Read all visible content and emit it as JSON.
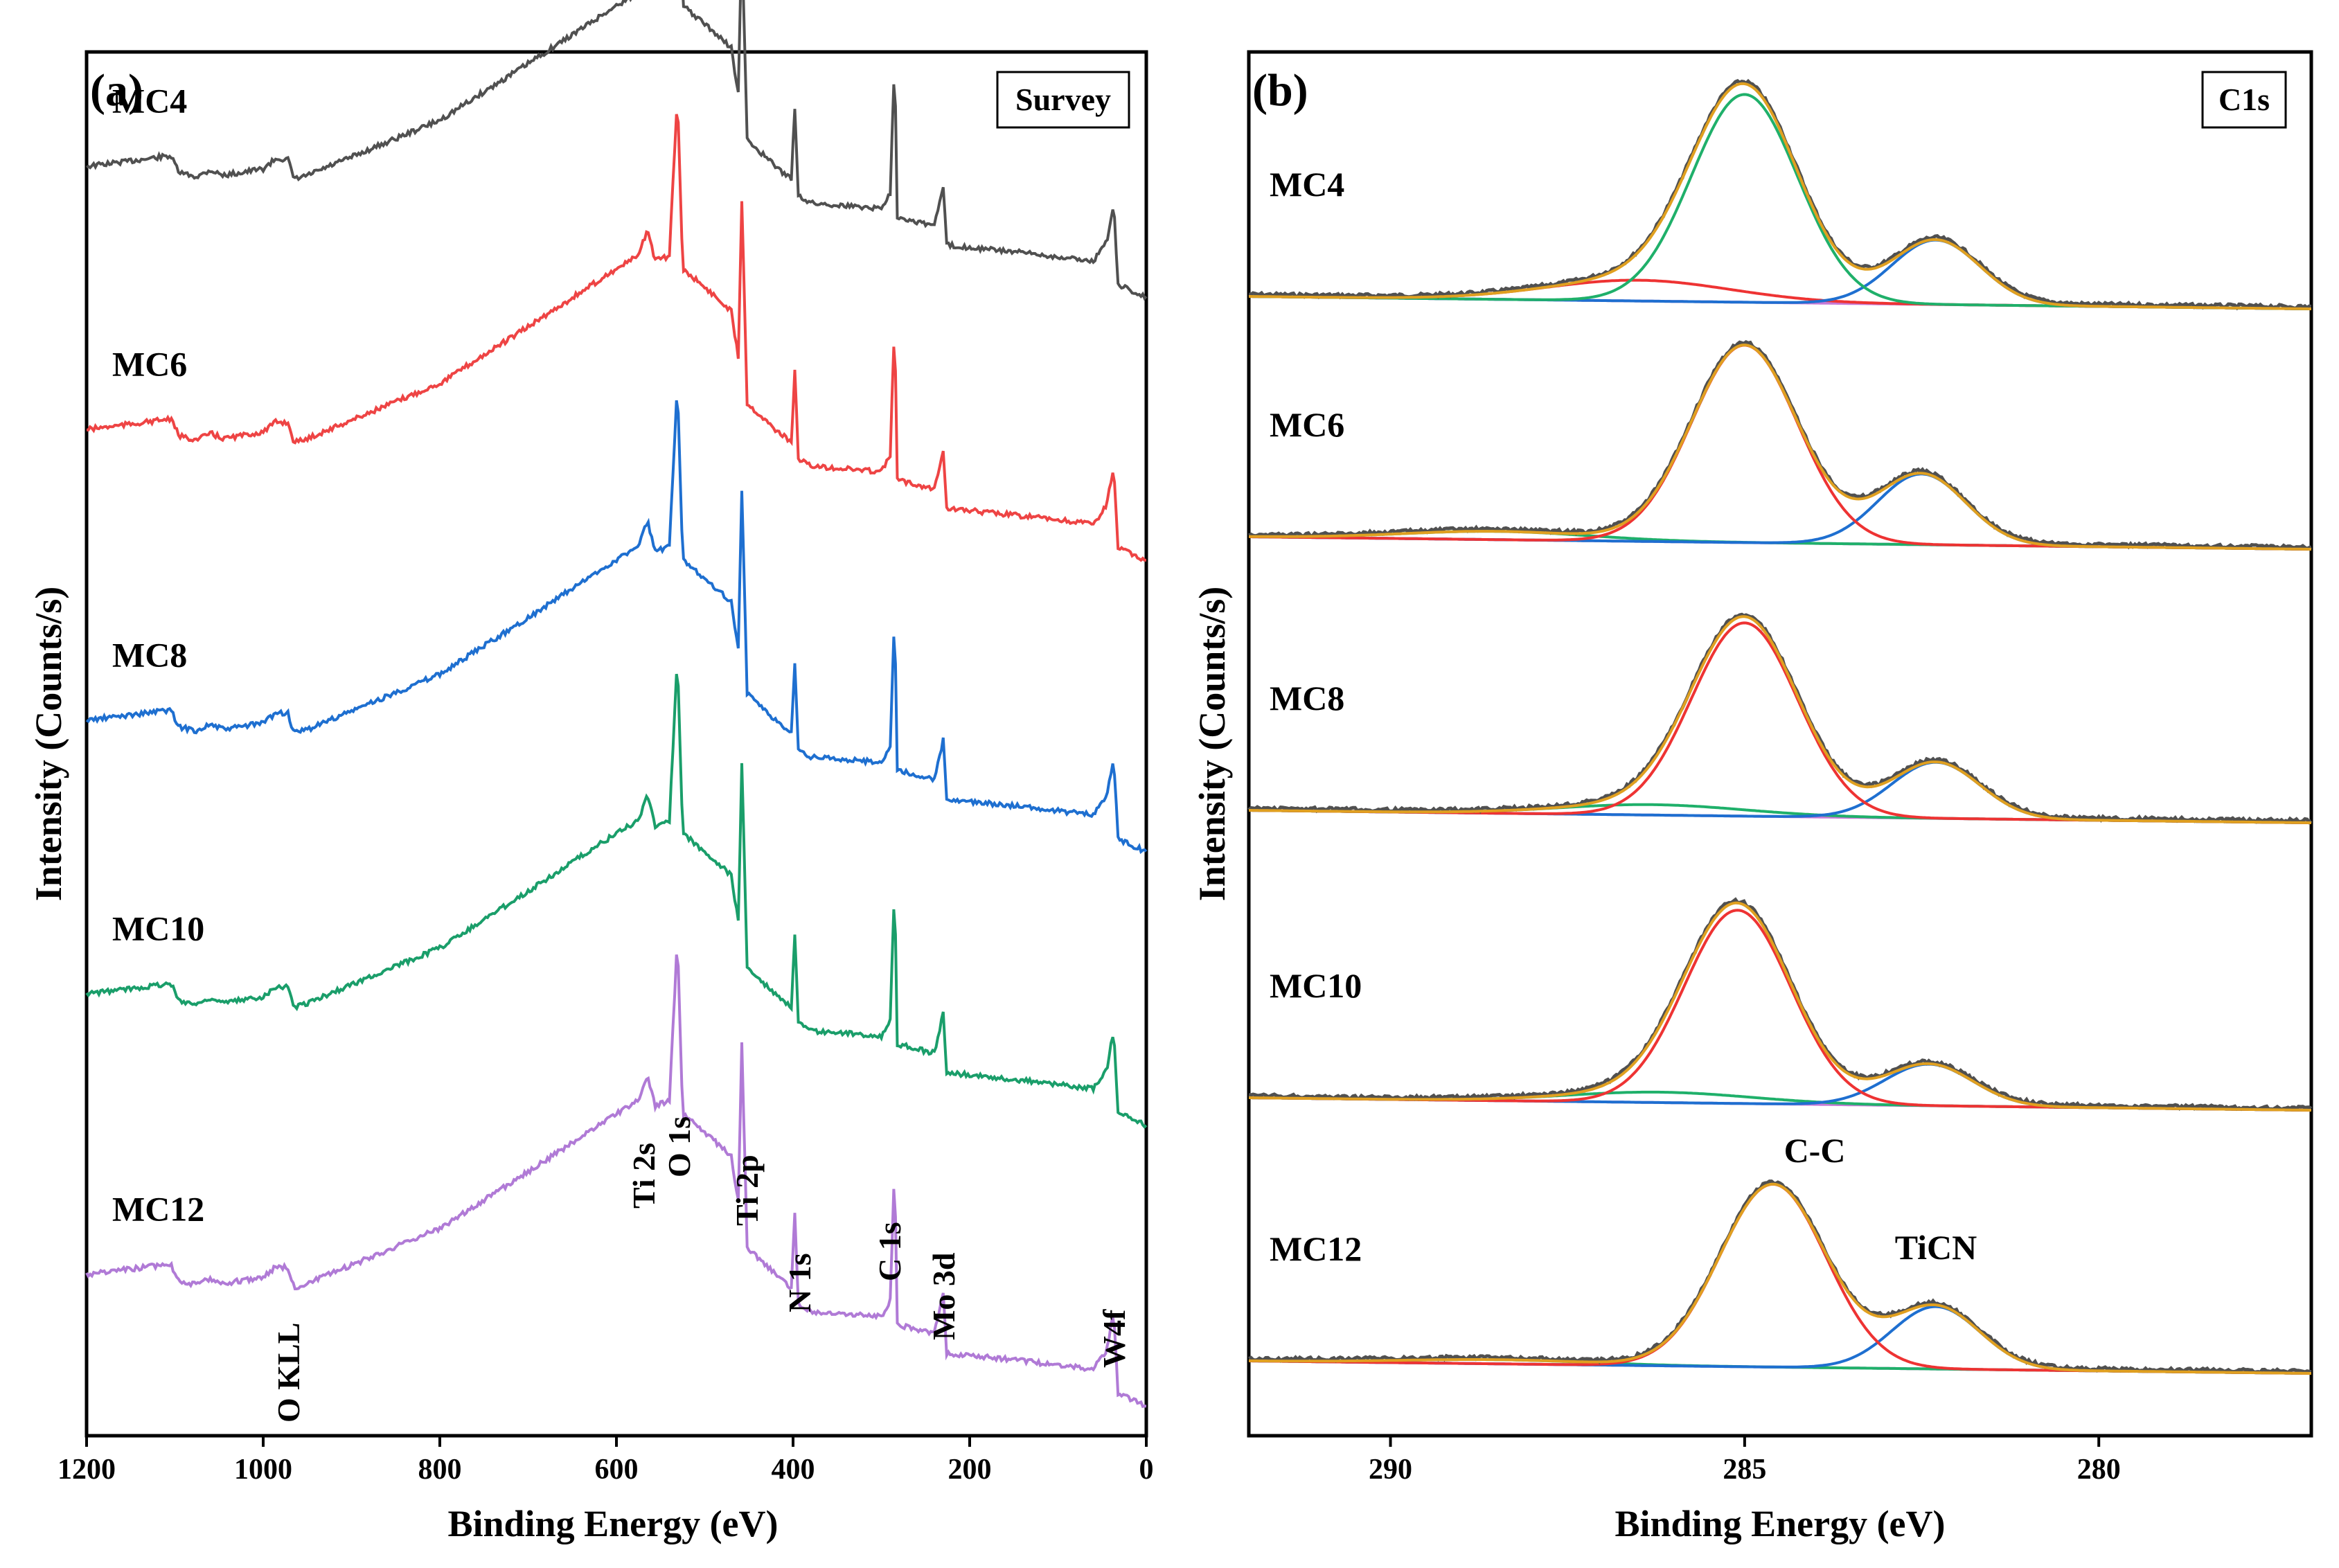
{
  "chart_data": [
    {
      "type": "line",
      "panel": "(a)",
      "title": "Survey",
      "xlabel": "Binding Energy (eV)",
      "ylabel": "Intensity (Counts/s)",
      "xlim": [
        1200,
        0
      ],
      "xticks": [
        1200,
        1000,
        800,
        600,
        400,
        200,
        0
      ],
      "yticks": "none",
      "series": [
        {
          "name": "MC4",
          "color": "#505050",
          "offset": 4
        },
        {
          "name": "MC6",
          "color": "#ee4444",
          "offset": 3
        },
        {
          "name": "MC8",
          "color": "#1e6fd0",
          "offset": 2
        },
        {
          "name": "MC10",
          "color": "#1a9e6a",
          "offset": 1
        },
        {
          "name": "MC12",
          "color": "#b07ad6",
          "offset": 0
        }
      ],
      "profile": [
        [
          1200,
          1.0
        ],
        [
          1150,
          1.04
        ],
        [
          1105,
          1.08
        ],
        [
          1095,
          0.95
        ],
        [
          1075,
          0.92
        ],
        [
          1060,
          0.97
        ],
        [
          1045,
          0.93
        ],
        [
          1000,
          0.98
        ],
        [
          985,
          1.06
        ],
        [
          972,
          1.05
        ],
        [
          965,
          0.9
        ],
        [
          950,
          0.93
        ],
        [
          800,
          1.35
        ],
        [
          700,
          1.78
        ],
        [
          600,
          2.22
        ],
        [
          575,
          2.32
        ],
        [
          565,
          2.52
        ],
        [
          556,
          2.28
        ],
        [
          540,
          2.32
        ],
        [
          531,
          3.55
        ],
        [
          525,
          2.22
        ],
        [
          500,
          2.08
        ],
        [
          470,
          1.9
        ],
        [
          462,
          1.55
        ],
        [
          458,
          2.75
        ],
        [
          452,
          1.2
        ],
        [
          420,
          1.0
        ],
        [
          402,
          0.9
        ],
        [
          398,
          1.45
        ],
        [
          394,
          0.78
        ],
        [
          380,
          0.72
        ],
        [
          300,
          0.68
        ],
        [
          290,
          0.8
        ],
        [
          285,
          1.85
        ],
        [
          282,
          0.62
        ],
        [
          260,
          0.58
        ],
        [
          240,
          0.55
        ],
        [
          230,
          0.85
        ],
        [
          226,
          0.4
        ],
        [
          150,
          0.35
        ],
        [
          60,
          0.28
        ],
        [
          45,
          0.42
        ],
        [
          37,
          0.72
        ],
        [
          32,
          0.1
        ],
        [
          0,
          0.0
        ]
      ],
      "annotations": [
        "O KLL",
        "Ti 2s",
        "O 1s",
        "Ti 2p",
        "N 1s",
        "C 1s",
        "Mo 3d",
        "W4f"
      ]
    },
    {
      "type": "line",
      "panel": "(b)",
      "title": "C1s",
      "xlabel": "Binding Energy (eV)",
      "ylabel": "Intensity (Counts/s)",
      "xlim": [
        292,
        277
      ],
      "xticks": [
        290,
        285,
        280
      ],
      "yticks": "none",
      "component_colors": {
        "envelope": "#e0a020",
        "raw": "#505050",
        "red": "#ee3333",
        "green": "#1fb06a",
        "blue": "#1e6fd0",
        "background": "#c77ad6"
      },
      "series": [
        {
          "name": "MC4",
          "cc_center": 285.0,
          "cc_height": 1.0,
          "ticn_center": 282.3,
          "ticn_height": 0.31,
          "extra_center": 286.5,
          "extra_height": 0.1,
          "main_color": "green",
          "extra_color": "red"
        },
        {
          "name": "MC6",
          "cc_center": 285.0,
          "cc_height": 0.95,
          "ticn_center": 282.5,
          "ticn_height": 0.34,
          "extra_center": 288.5,
          "extra_height": 0.04,
          "main_color": "red",
          "extra_color": "green"
        },
        {
          "name": "MC8",
          "cc_center": 285.0,
          "cc_height": 0.93,
          "ticn_center": 282.3,
          "ticn_height": 0.27,
          "extra_center": 286.3,
          "extra_height": 0.05,
          "main_color": "red",
          "extra_color": "green"
        },
        {
          "name": "MC10",
          "cc_center": 285.1,
          "cc_height": 0.93,
          "ticn_center": 282.4,
          "ticn_height": 0.2,
          "extra_center": 286.2,
          "extra_height": 0.05,
          "main_color": "red",
          "extra_color": "green"
        },
        {
          "name": "MC12",
          "cc_center": 284.6,
          "cc_height": 0.88,
          "ticn_center": 282.3,
          "ticn_height": 0.3,
          "extra_center": 288.5,
          "extra_height": 0.02,
          "main_color": "red",
          "extra_color": "green"
        }
      ],
      "annotations": [
        "C-C",
        "TiCN"
      ]
    }
  ]
}
